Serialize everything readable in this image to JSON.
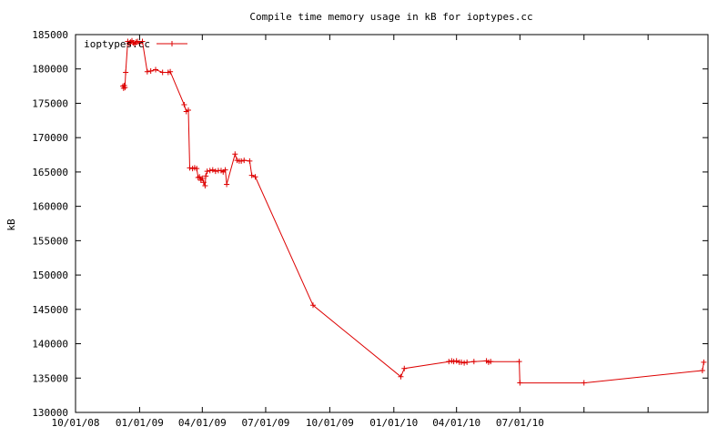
{
  "chart_data": {
    "type": "line",
    "title": "Compile time memory usage in kB for ioptypes.cc",
    "xlabel": "",
    "ylabel": "kB",
    "xlim": [
      "2008-10-01",
      "2011-03-28"
    ],
    "ylim": [
      130000,
      185000
    ],
    "x_ticks": [
      {
        "date": "2008-10-01",
        "label": "10/01/08"
      },
      {
        "date": "2009-01-01",
        "label": "01/01/09"
      },
      {
        "date": "2009-04-01",
        "label": "04/01/09"
      },
      {
        "date": "2009-07-01",
        "label": "07/01/09"
      },
      {
        "date": "2009-10-01",
        "label": "10/01/09"
      },
      {
        "date": "2010-01-01",
        "label": "01/01/10"
      },
      {
        "date": "2010-04-01",
        "label": "04/01/10"
      },
      {
        "date": "2010-07-01",
        "label": "07/01/10"
      },
      {
        "date": "2010-10-01",
        "label": ""
      },
      {
        "date": "2011-01-01",
        "label": ""
      }
    ],
    "y_ticks": [
      {
        "value": 130000,
        "label": "130000"
      },
      {
        "value": 135000,
        "label": "135000"
      },
      {
        "value": 140000,
        "label": "140000"
      },
      {
        "value": 145000,
        "label": "145000"
      },
      {
        "value": 150000,
        "label": "150000"
      },
      {
        "value": 155000,
        "label": "155000"
      },
      {
        "value": 160000,
        "label": "160000"
      },
      {
        "value": 165000,
        "label": "165000"
      },
      {
        "value": 170000,
        "label": "170000"
      },
      {
        "value": 175000,
        "label": "175000"
      },
      {
        "value": 180000,
        "label": "180000"
      },
      {
        "value": 185000,
        "label": "185000"
      }
    ],
    "grid": false,
    "legend_position": "top-left",
    "colors": {
      "series": "#dd0000",
      "axes": "#000000"
    },
    "series": [
      {
        "name": "ioptypes.cc",
        "points": [
          [
            "2008-12-08",
            177500
          ],
          [
            "2008-12-09",
            177200
          ],
          [
            "2008-12-10",
            177600
          ],
          [
            "2008-12-11",
            177300
          ],
          [
            "2008-12-12",
            179500
          ],
          [
            "2008-12-15",
            184000
          ],
          [
            "2008-12-17",
            183700
          ],
          [
            "2008-12-19",
            183900
          ],
          [
            "2008-12-21",
            184100
          ],
          [
            "2008-12-23",
            183800
          ],
          [
            "2008-12-25",
            183600
          ],
          [
            "2008-12-27",
            183900
          ],
          [
            "2008-12-29",
            184000
          ],
          [
            "2009-01-01",
            183700
          ],
          [
            "2009-01-05",
            184000
          ],
          [
            "2009-01-12",
            179600
          ],
          [
            "2009-01-17",
            179700
          ],
          [
            "2009-01-24",
            179900
          ],
          [
            "2009-02-03",
            179500
          ],
          [
            "2009-02-11",
            179500
          ],
          [
            "2009-02-14",
            179600
          ],
          [
            "2009-03-06",
            174800
          ],
          [
            "2009-03-09",
            173800
          ],
          [
            "2009-03-12",
            174000
          ],
          [
            "2009-03-14",
            165600
          ],
          [
            "2009-03-18",
            165500
          ],
          [
            "2009-03-21",
            165600
          ],
          [
            "2009-03-24",
            165500
          ],
          [
            "2009-03-26",
            164200
          ],
          [
            "2009-03-28",
            164300
          ],
          [
            "2009-03-30",
            163800
          ],
          [
            "2009-04-01",
            164100
          ],
          [
            "2009-04-03",
            163500
          ],
          [
            "2009-04-05",
            163000
          ],
          [
            "2009-04-06",
            164400
          ],
          [
            "2009-04-08",
            165100
          ],
          [
            "2009-04-12",
            165200
          ],
          [
            "2009-04-16",
            165300
          ],
          [
            "2009-04-20",
            165100
          ],
          [
            "2009-04-24",
            165200
          ],
          [
            "2009-04-28",
            165200
          ],
          [
            "2009-05-01",
            165000
          ],
          [
            "2009-05-04",
            165300
          ],
          [
            "2009-05-06",
            163200
          ],
          [
            "2009-05-18",
            167600
          ],
          [
            "2009-05-21",
            166700
          ],
          [
            "2009-05-24",
            166600
          ],
          [
            "2009-05-27",
            166600
          ],
          [
            "2009-05-31",
            166700
          ],
          [
            "2009-06-08",
            166600
          ],
          [
            "2009-06-11",
            164500
          ],
          [
            "2009-06-16",
            164300
          ],
          [
            "2009-09-07",
            145600
          ],
          [
            "2010-01-11",
            135200
          ],
          [
            "2010-01-16",
            136400
          ],
          [
            "2010-03-21",
            137400
          ],
          [
            "2010-03-25",
            137500
          ],
          [
            "2010-03-28",
            137400
          ],
          [
            "2010-04-01",
            137500
          ],
          [
            "2010-04-05",
            137300
          ],
          [
            "2010-04-08",
            137300
          ],
          [
            "2010-04-12",
            137200
          ],
          [
            "2010-04-16",
            137300
          ],
          [
            "2010-04-26",
            137400
          ],
          [
            "2010-05-14",
            137500
          ],
          [
            "2010-05-17",
            137300
          ],
          [
            "2010-05-20",
            137400
          ],
          [
            "2010-06-30",
            137400
          ],
          [
            "2010-07-01",
            134300
          ],
          [
            "2010-10-01",
            134300
          ],
          [
            "2011-03-20",
            136100
          ],
          [
            "2011-03-22",
            137300
          ]
        ]
      }
    ]
  }
}
